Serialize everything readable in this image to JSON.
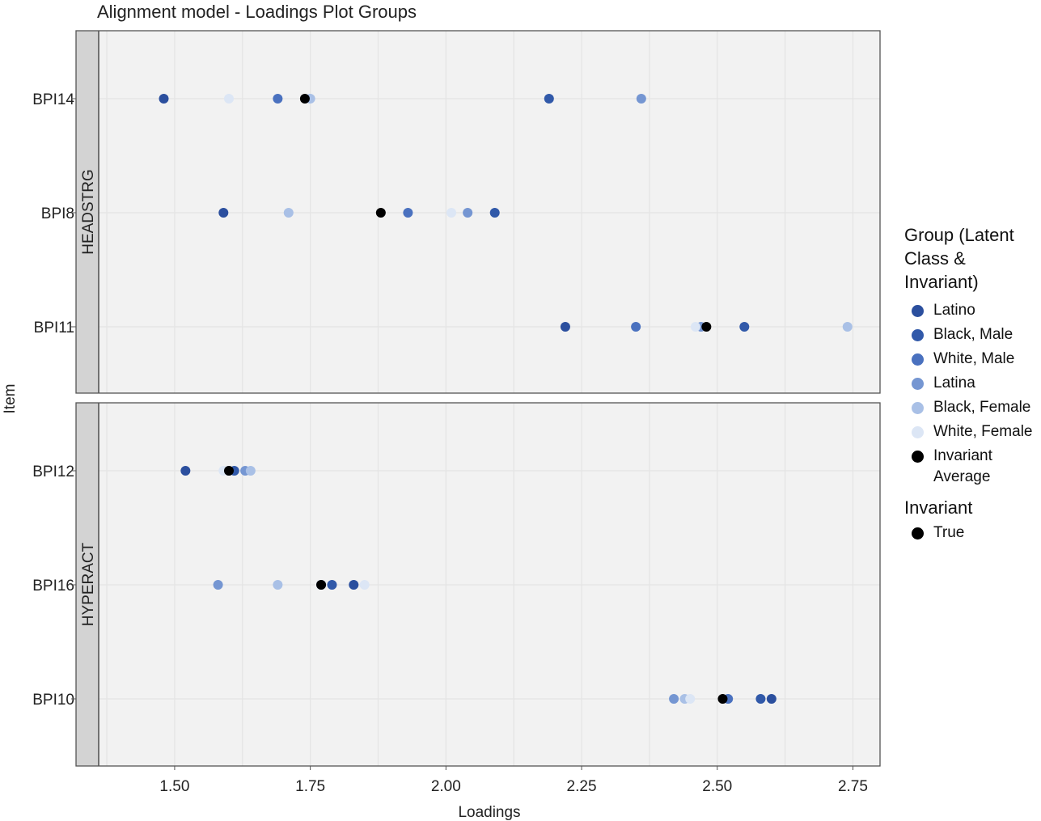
{
  "chart_data": {
    "type": "scatter",
    "title": "Alignment model - Loadings Plot Groups",
    "xlabel": "Loadings",
    "ylabel": "Item",
    "xlim": [
      1.36,
      2.8
    ],
    "xticks": [
      "1.50",
      "1.75",
      "2.00",
      "2.25",
      "2.50",
      "2.75"
    ],
    "xtick_values": [
      1.5,
      1.75,
      2.0,
      2.25,
      2.5,
      2.75
    ],
    "grid": true,
    "legend_position": "right",
    "panels": [
      {
        "name": "HEADSTRG",
        "items": [
          "BPI14",
          "BPI8",
          "BPI11"
        ],
        "points": [
          {
            "item": "BPI14",
            "group": "Latino",
            "x": 1.48
          },
          {
            "item": "BPI14",
            "group": "Black, Male",
            "x": 2.19
          },
          {
            "item": "BPI14",
            "group": "White, Male",
            "x": 1.69
          },
          {
            "item": "BPI14",
            "group": "Latina",
            "x": 2.36
          },
          {
            "item": "BPI14",
            "group": "Black, Female",
            "x": 1.75
          },
          {
            "item": "BPI14",
            "group": "White, Female",
            "x": 1.6
          },
          {
            "item": "BPI14",
            "group": "Invariant Average",
            "x": 1.74
          },
          {
            "item": "BPI8",
            "group": "Latino",
            "x": 1.59
          },
          {
            "item": "BPI8",
            "group": "Black, Male",
            "x": 2.09
          },
          {
            "item": "BPI8",
            "group": "White, Male",
            "x": 1.93
          },
          {
            "item": "BPI8",
            "group": "Latina",
            "x": 2.04
          },
          {
            "item": "BPI8",
            "group": "Black, Female",
            "x": 1.71
          },
          {
            "item": "BPI8",
            "group": "White, Female",
            "x": 2.01
          },
          {
            "item": "BPI8",
            "group": "Invariant Average",
            "x": 1.88
          },
          {
            "item": "BPI11",
            "group": "Latino",
            "x": 2.22
          },
          {
            "item": "BPI11",
            "group": "Black, Male",
            "x": 2.55
          },
          {
            "item": "BPI11",
            "group": "White, Male",
            "x": 2.35
          },
          {
            "item": "BPI11",
            "group": "Latina",
            "x": 2.47
          },
          {
            "item": "BPI11",
            "group": "Black, Female",
            "x": 2.74
          },
          {
            "item": "BPI11",
            "group": "White, Female",
            "x": 2.46
          },
          {
            "item": "BPI11",
            "group": "Invariant Average",
            "x": 2.48
          }
        ]
      },
      {
        "name": "HYPERACT",
        "items": [
          "BPI12",
          "BPI16",
          "BPI10"
        ],
        "points": [
          {
            "item": "BPI12",
            "group": "Latino",
            "x": 1.52
          },
          {
            "item": "BPI12",
            "group": "Black, Male",
            "x": 1.61
          },
          {
            "item": "BPI12",
            "group": "White, Male",
            "x": 1.6
          },
          {
            "item": "BPI12",
            "group": "Latina",
            "x": 1.63
          },
          {
            "item": "BPI12",
            "group": "Black, Female",
            "x": 1.64
          },
          {
            "item": "BPI12",
            "group": "White, Female",
            "x": 1.59
          },
          {
            "item": "BPI12",
            "group": "Invariant Average",
            "x": 1.6
          },
          {
            "item": "BPI16",
            "group": "Latino",
            "x": 1.83
          },
          {
            "item": "BPI16",
            "group": "Black, Male",
            "x": 1.79
          },
          {
            "item": "BPI16",
            "group": "White, Male",
            "x": 1.77
          },
          {
            "item": "BPI16",
            "group": "Latina",
            "x": 1.58
          },
          {
            "item": "BPI16",
            "group": "Black, Female",
            "x": 1.69
          },
          {
            "item": "BPI16",
            "group": "White, Female",
            "x": 1.85
          },
          {
            "item": "BPI16",
            "group": "Invariant Average",
            "x": 1.77
          },
          {
            "item": "BPI10",
            "group": "Latino",
            "x": 2.6
          },
          {
            "item": "BPI10",
            "group": "Black, Male",
            "x": 2.58
          },
          {
            "item": "BPI10",
            "group": "White, Male",
            "x": 2.52
          },
          {
            "item": "BPI10",
            "group": "Latina",
            "x": 2.42
          },
          {
            "item": "BPI10",
            "group": "Black, Female",
            "x": 2.44
          },
          {
            "item": "BPI10",
            "group": "White, Female",
            "x": 2.45
          },
          {
            "item": "BPI10",
            "group": "Invariant Average",
            "x": 2.51
          }
        ]
      }
    ]
  },
  "legend": {
    "group_title": "Group (Latent Class & Invariant)",
    "group_title_lines": [
      "Group (Latent",
      "Class &",
      "Invariant)"
    ],
    "groups": [
      {
        "label": "Latino",
        "color": "#2b4f9e"
      },
      {
        "label": "Black, Male",
        "color": "#3159a9"
      },
      {
        "label": "White, Male",
        "color": "#4a71bf"
      },
      {
        "label": "Latina",
        "color": "#7596d2"
      },
      {
        "label": "Black, Female",
        "color": "#a9c0e6"
      },
      {
        "label": "White, Female",
        "color": "#dce6f5"
      },
      {
        "label": "Invariant Average",
        "color": "#000000",
        "lines": [
          "Invariant",
          "Average"
        ]
      }
    ],
    "invariant_title": "Invariant",
    "invariant_items": [
      {
        "label": "True",
        "color": "#000000"
      }
    ]
  },
  "colors": {
    "panel_bg": "#f2f2f2",
    "grid": "#e4e4e4",
    "strip_bg": "#d3d3d3",
    "border": "#555555"
  }
}
